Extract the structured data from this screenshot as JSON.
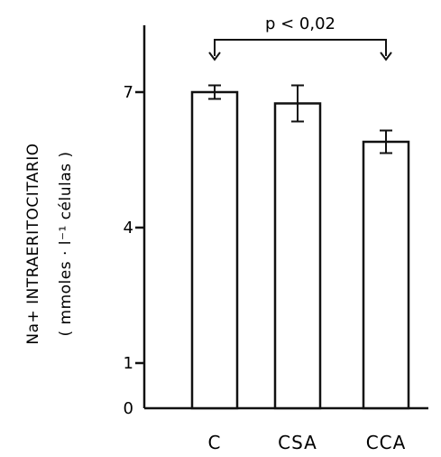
{
  "chart_data": {
    "type": "bar",
    "title": "",
    "xlabel": "",
    "ylabel_line1": "Na+ INTRAERITOCITARIO",
    "ylabel_line2": "( mmoles · l⁻¹ células )",
    "categories": [
      "C",
      "CSA",
      "CCA"
    ],
    "values": [
      7.0,
      6.75,
      5.9
    ],
    "errors": [
      0.15,
      0.4,
      0.25
    ],
    "yticks": [
      {
        "value": 0,
        "label": "0"
      },
      {
        "value": 1,
        "label": "1"
      },
      {
        "value": 4,
        "label": "4"
      },
      {
        "value": 7,
        "label": "7"
      }
    ],
    "ylim": [
      0,
      8.4
    ],
    "annotation": {
      "text": "p < 0,02",
      "from": "C",
      "to": "CCA"
    },
    "grid": false,
    "legend": "none"
  }
}
